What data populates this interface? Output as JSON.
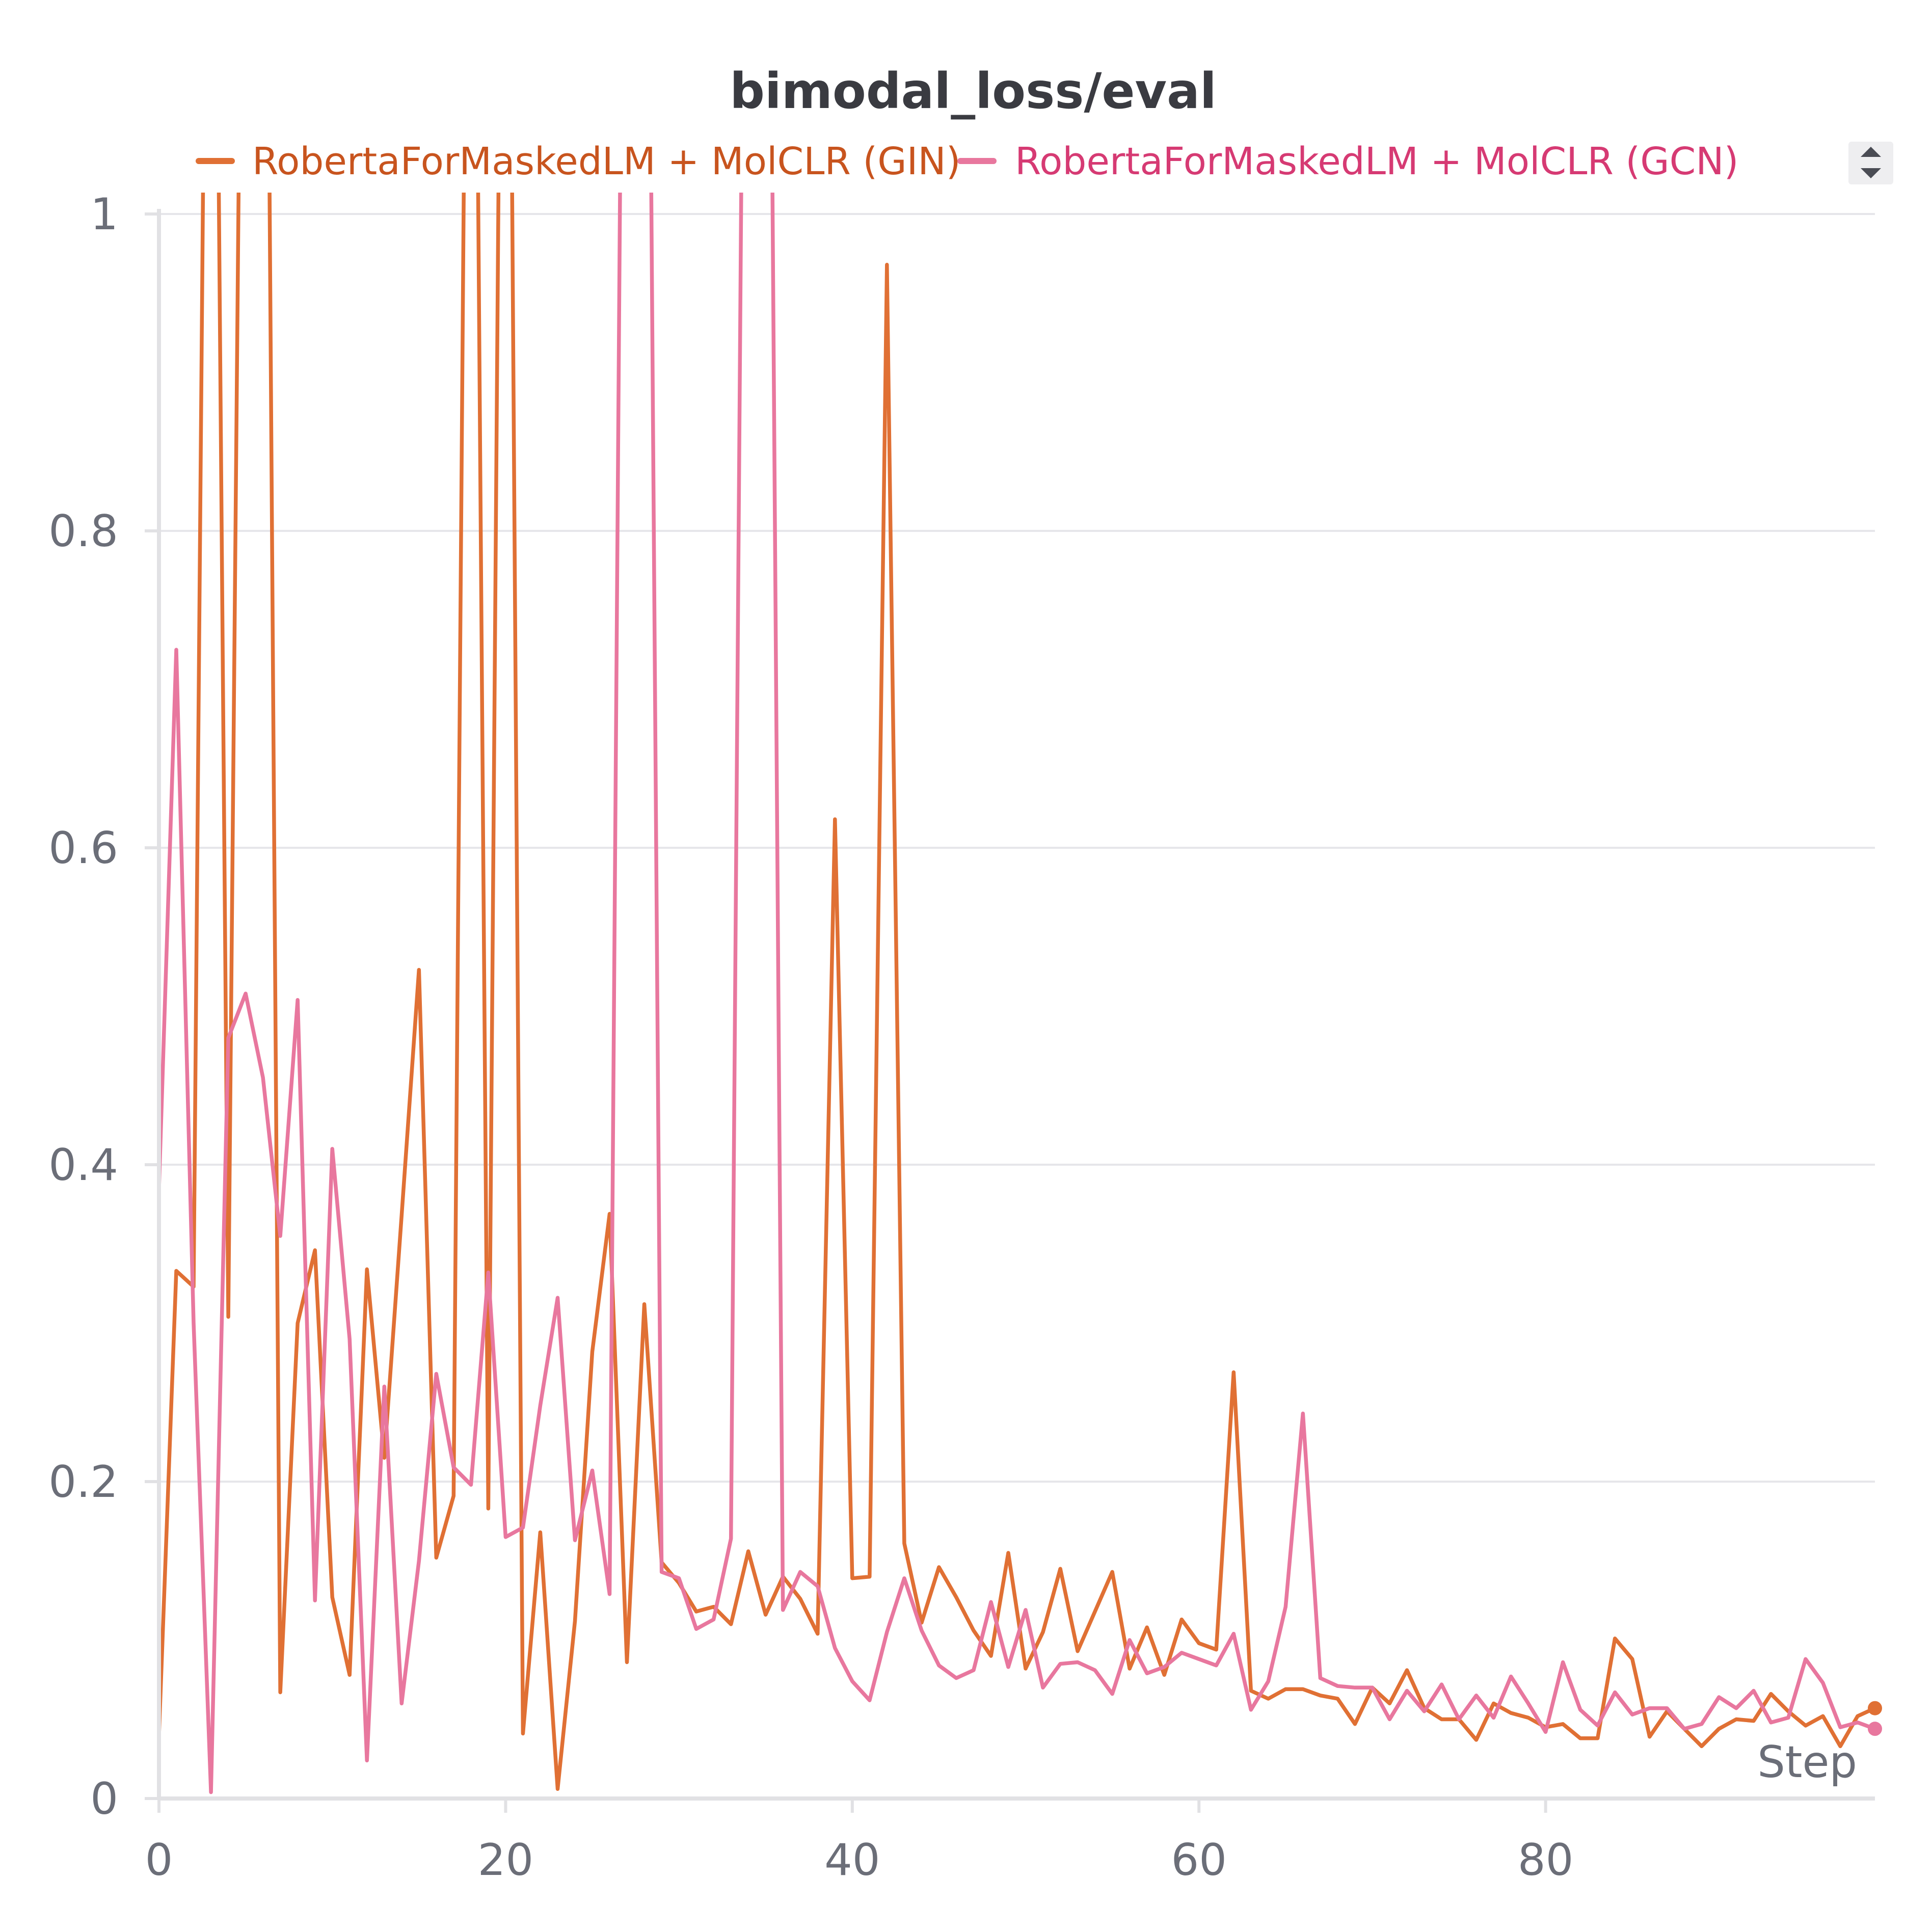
{
  "chart_data": {
    "type": "line",
    "title": "bimodal_loss/eval",
    "xlabel": "Step",
    "ylabel": "",
    "xlim": [
      0,
      99
    ],
    "ylim": [
      0,
      1
    ],
    "x_ticks": [
      0,
      20,
      40,
      60,
      80
    ],
    "y_ticks": [
      0,
      0.2,
      0.4,
      0.6,
      0.8,
      1
    ],
    "y_tick_labels": [
      "0",
      "0.2",
      "0.4",
      "0.6",
      "0.8",
      "1"
    ],
    "grid": true,
    "legend_position": "top",
    "series": [
      {
        "name": "RobertaForMaskedLM + MolCLR (GIN)",
        "color": "#e07034",
        "label_color": "#c8541e",
        "x": [
          0,
          1,
          2,
          3,
          4,
          5,
          6,
          7,
          8,
          9,
          10,
          11,
          12,
          13,
          14,
          15,
          16,
          17,
          18,
          19,
          20,
          21,
          22,
          23,
          24,
          25,
          26,
          27,
          28,
          29,
          30,
          31,
          32,
          33,
          34,
          35,
          36,
          37,
          38,
          39,
          40,
          41,
          42,
          43,
          44,
          45,
          46,
          47,
          48,
          49,
          50,
          51,
          52,
          53,
          54,
          55,
          56,
          57,
          58,
          59,
          60,
          61,
          62,
          63,
          64,
          65,
          66,
          67,
          68,
          69,
          70,
          71,
          72,
          73,
          74,
          75,
          76,
          77,
          78,
          79,
          80,
          81,
          82,
          83,
          84,
          85,
          86,
          87,
          88,
          89,
          90,
          91,
          92,
          93,
          94,
          95,
          96,
          97,
          98,
          99
        ],
        "values": [
          0.04,
          0.333,
          0.323,
          1.6,
          0.304,
          1.5,
          1.6,
          0.067,
          0.3,
          0.346,
          0.127,
          0.078,
          0.334,
          0.215,
          0.368,
          0.523,
          0.152,
          0.191,
          1.6,
          0.183,
          1.6,
          0.041,
          0.168,
          0.006,
          0.112,
          0.282,
          0.369,
          0.086,
          0.312,
          0.149,
          0.136,
          0.118,
          0.121,
          0.11,
          0.156,
          0.116,
          0.14,
          0.126,
          0.104,
          0.618,
          0.139,
          0.14,
          0.968,
          0.161,
          0.111,
          0.146,
          0.127,
          0.106,
          0.09,
          0.155,
          0.082,
          0.105,
          0.145,
          0.093,
          0.118,
          0.143,
          0.082,
          0.108,
          0.078,
          0.113,
          0.098,
          0.094,
          0.269,
          0.068,
          0.063,
          0.069,
          0.069,
          0.065,
          0.063,
          0.047,
          0.07,
          0.06,
          0.081,
          0.057,
          0.05,
          0.05,
          0.037,
          0.06,
          0.054,
          0.051,
          0.045,
          0.047,
          0.038,
          0.038,
          0.101,
          0.088,
          0.039,
          0.055,
          0.044,
          0.033,
          0.044,
          0.05,
          0.049,
          0.066,
          0.055,
          0.046,
          0.052,
          0.033,
          0.052,
          0.057
        ]
      },
      {
        "name": "RobertaForMaskedLM + MolCLR (GCN)",
        "color": "#e8779e",
        "label_color": "#d63a73",
        "x": [
          0,
          1,
          2,
          3,
          4,
          5,
          6,
          7,
          8,
          9,
          10,
          11,
          12,
          13,
          14,
          15,
          16,
          17,
          18,
          19,
          20,
          21,
          22,
          23,
          24,
          25,
          26,
          27,
          28,
          29,
          30,
          31,
          32,
          33,
          34,
          35,
          36,
          37,
          38,
          39,
          40,
          41,
          42,
          43,
          44,
          45,
          46,
          47,
          48,
          49,
          50,
          51,
          52,
          53,
          54,
          55,
          56,
          57,
          58,
          59,
          60,
          61,
          62,
          63,
          64,
          65,
          66,
          67,
          68,
          69,
          70,
          71,
          72,
          73,
          74,
          75,
          76,
          77,
          78,
          79,
          80,
          81,
          82,
          83,
          84,
          85,
          86,
          87,
          88,
          89,
          90,
          91,
          92,
          93,
          94,
          95,
          96,
          97,
          98,
          99
        ],
        "values": [
          0.385,
          0.725,
          0.3,
          0.004,
          0.48,
          0.508,
          0.455,
          0.355,
          0.504,
          0.125,
          0.41,
          0.29,
          0.024,
          0.26,
          0.06,
          0.15,
          0.268,
          0.209,
          0.198,
          0.332,
          0.165,
          0.171,
          0.248,
          0.316,
          0.163,
          0.207,
          0.129,
          1.6,
          1.6,
          0.143,
          0.139,
          0.107,
          0.113,
          0.164,
          1.6,
          1.6,
          0.119,
          0.143,
          0.134,
          0.095,
          0.074,
          0.062,
          0.105,
          0.139,
          0.106,
          0.084,
          0.076,
          0.081,
          0.124,
          0.083,
          0.119,
          0.07,
          0.085,
          0.086,
          0.081,
          0.066,
          0.1,
          0.079,
          0.083,
          0.092,
          0.088,
          0.084,
          0.104,
          0.056,
          0.074,
          0.121,
          0.243,
          0.076,
          0.071,
          0.07,
          0.07,
          0.05,
          0.068,
          0.055,
          0.072,
          0.05,
          0.065,
          0.051,
          0.077,
          0.06,
          0.042,
          0.086,
          0.056,
          0.046,
          0.067,
          0.053,
          0.057,
          0.057,
          0.044,
          0.047,
          0.064,
          0.057,
          0.068,
          0.048,
          0.051,
          0.088,
          0.073,
          0.045,
          0.048,
          0.044
        ]
      }
    ]
  }
}
